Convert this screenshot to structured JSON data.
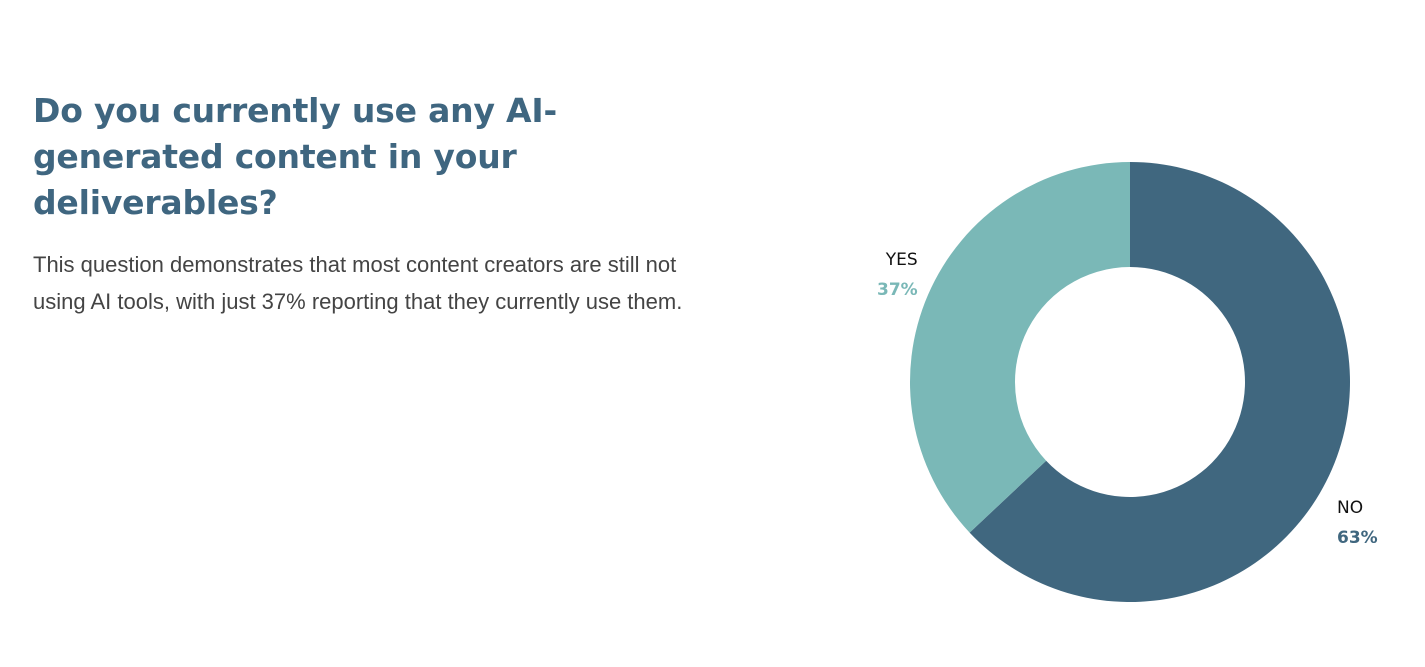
{
  "headline": "Do you currently use any AI-generated content in your deliverables?",
  "description": "This question demonstrates that most content creators are still not using AI tools, with just 37% reporting that they currently use them.",
  "colors": {
    "yes": "#7ab8b7",
    "no": "#40677f",
    "headline": "#3f6680"
  },
  "chart_data": {
    "type": "pie",
    "variant": "donut",
    "title": "",
    "categories": [
      "NO",
      "YES"
    ],
    "values": [
      63,
      37
    ],
    "value_labels": [
      "63%",
      "37%"
    ],
    "start_angle_deg": 0,
    "direction": "clockwise"
  },
  "labels": {
    "yes": {
      "name": "YES",
      "value": "37%"
    },
    "no": {
      "name": "NO",
      "value": "63%"
    }
  }
}
